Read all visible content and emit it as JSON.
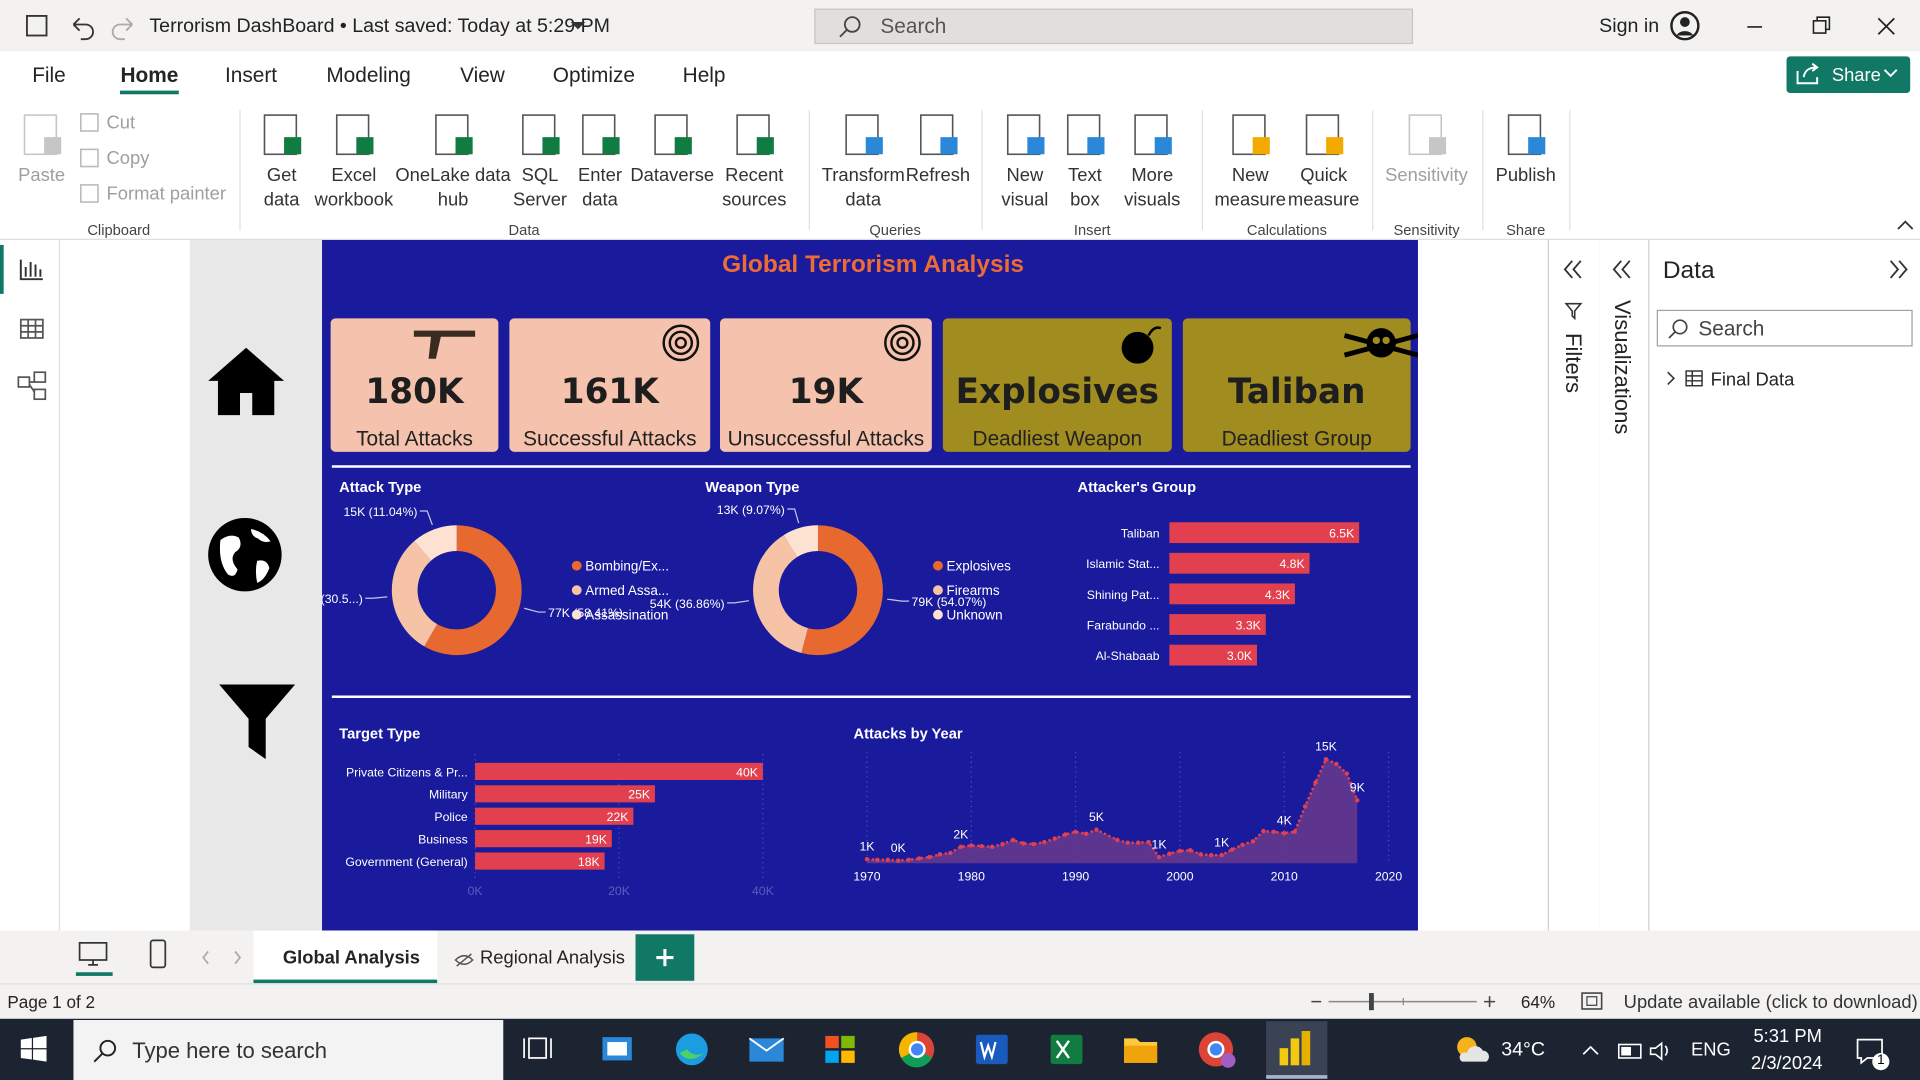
{
  "title_bar": {
    "title": "Terrorism DashBoard • Last saved: Today at 5:29 PM",
    "search": "Search",
    "sign_in": "Sign in"
  },
  "menu": {
    "tabs": [
      "File",
      "Home",
      "Insert",
      "Modeling",
      "View",
      "Optimize",
      "Help"
    ],
    "share": "Share"
  },
  "ribbon": {
    "groups": [
      {
        "label": "Clipboard",
        "items": [
          "Paste",
          "Cut",
          "Copy",
          "Format painter"
        ]
      },
      {
        "label": "Data",
        "items": [
          "Get data",
          "Excel workbook",
          "OneLake data hub",
          "SQL Server",
          "Enter data",
          "Dataverse",
          "Recent sources"
        ]
      },
      {
        "label": "Queries",
        "items": [
          "Transform data",
          "Refresh"
        ]
      },
      {
        "label": "Insert",
        "items": [
          "New visual",
          "Text box",
          "More visuals"
        ]
      },
      {
        "label": "Calculations",
        "items": [
          "New measure",
          "Quick measure"
        ]
      },
      {
        "label": "Sensitivity",
        "items": [
          "Sensitivity"
        ]
      },
      {
        "label": "Share",
        "items": [
          "Publish"
        ]
      }
    ]
  },
  "report": {
    "title": "Global Terrorism Analysis",
    "kpis": [
      {
        "value": "180K",
        "label": "Total Attacks"
      },
      {
        "value": "161K",
        "label": "Successful Attacks"
      },
      {
        "value": "19K",
        "label": "Unsuccessful Attacks"
      },
      {
        "value": "Explosives",
        "label": "Deadliest Weapon"
      },
      {
        "value": "Taliban",
        "label": "Deadliest Group"
      }
    ]
  },
  "chart_data": [
    {
      "type": "donut",
      "title": "Attack Type",
      "categories": [
        "Bombing/Ex...",
        "Armed Assa...",
        "Assassination"
      ],
      "values": [
        77,
        40,
        15
      ],
      "value_labels": [
        "77K (58.41%)",
        "40K (30.5...)",
        "15K (11.04%)"
      ],
      "colors": [
        "#e8692f",
        "#f6c3a6",
        "#fde2d2"
      ]
    },
    {
      "type": "donut",
      "title": "Weapon Type",
      "categories": [
        "Explosives",
        "Firearms",
        "Unknown"
      ],
      "values": [
        79,
        54,
        13
      ],
      "value_labels": [
        "79K (54.07%)",
        "54K (36.86%)",
        "13K (9.07%)"
      ],
      "colors": [
        "#e8692f",
        "#f6c3a6",
        "#fde2d2"
      ]
    },
    {
      "type": "bar",
      "title": "Attacker's Group",
      "categories": [
        "Taliban",
        "Islamic Stat...",
        "Shining Pat...",
        "Farabundo ...",
        "Al-Shabaab"
      ],
      "values": [
        6.5,
        4.8,
        4.3,
        3.3,
        3.0
      ],
      "value_labels": [
        "6.5K",
        "4.8K",
        "4.3K",
        "3.3K",
        "3.0K"
      ],
      "color": "#e2404f"
    },
    {
      "type": "bar",
      "title": "Target Type",
      "categories": [
        "Private Citizens & Pr...",
        "Military",
        "Police",
        "Business",
        "Government (General)"
      ],
      "values": [
        40,
        25,
        22,
        19,
        18
      ],
      "value_labels": [
        "40K",
        "25K",
        "22K",
        "19K",
        "18K"
      ],
      "color": "#e2404f",
      "xlim": [
        0,
        40
      ],
      "xticks": [
        {
          "value": 0,
          "label": "0K"
        },
        {
          "value": 20,
          "label": "20K"
        },
        {
          "value": 40,
          "label": "40K"
        }
      ],
      "grid": true
    },
    {
      "type": "area",
      "title": "Attacks by Year",
      "x": [
        1970,
        1971,
        1972,
        1973,
        1974,
        1975,
        1976,
        1977,
        1978,
        1979,
        1980,
        1981,
        1982,
        1983,
        1984,
        1985,
        1986,
        1987,
        1988,
        1989,
        1990,
        1991,
        1992,
        1994,
        1995,
        1996,
        1997,
        1998,
        1999,
        2000,
        2001,
        2002,
        2003,
        2004,
        2005,
        2006,
        2007,
        2008,
        2009,
        2010,
        2011,
        2012,
        2013,
        2014,
        2015,
        2016,
        2017
      ],
      "values": [
        0.6,
        0.5,
        0.5,
        0.4,
        0.5,
        0.7,
        0.9,
        1.3,
        1.5,
        2.4,
        2.6,
        2.5,
        2.4,
        2.8,
        3.4,
        2.9,
        2.8,
        3.1,
        3.6,
        4.2,
        4.6,
        4.3,
        4.9,
        3.4,
        3.0,
        3.0,
        3.1,
        0.9,
        1.4,
        1.8,
        1.9,
        1.3,
        1.2,
        1.2,
        2.0,
        2.7,
        3.2,
        4.7,
        4.6,
        4.4,
        4.6,
        8.3,
        11.8,
        15.2,
        14.5,
        13.1,
        9.2
      ],
      "value_labels": [
        "1K",
        null,
        null,
        "0K",
        null,
        null,
        null,
        null,
        null,
        "2K",
        null,
        null,
        null,
        null,
        null,
        null,
        null,
        null,
        null,
        null,
        null,
        null,
        "5K",
        null,
        null,
        null,
        null,
        "1K",
        null,
        null,
        null,
        null,
        null,
        "1K",
        null,
        null,
        null,
        null,
        null,
        "4K",
        null,
        null,
        null,
        "15K",
        null,
        null,
        "9K"
      ],
      "color": "#e2404f",
      "fill": "#6a3a8c",
      "xlim": [
        1970,
        2020
      ],
      "xticks": [
        1970,
        1980,
        1990,
        2000,
        2010,
        2020
      ],
      "grid": true
    }
  ],
  "pages": {
    "tabs": [
      "Global Analysis",
      "Regional Analysis"
    ]
  },
  "panes": {
    "filters": "Filters",
    "visualizations": "Visualizations",
    "data_title": "Data",
    "search": "Search",
    "table": "Final Data"
  },
  "status": {
    "page": "Page 1 of 2",
    "zoom": "64%",
    "update": "Update available (click to download)"
  },
  "taskbar": {
    "search": "Type here to search",
    "temp": "34°C",
    "lang": "ENG",
    "time": "5:31 PM",
    "date": "2/3/2024",
    "notifications": "1"
  }
}
